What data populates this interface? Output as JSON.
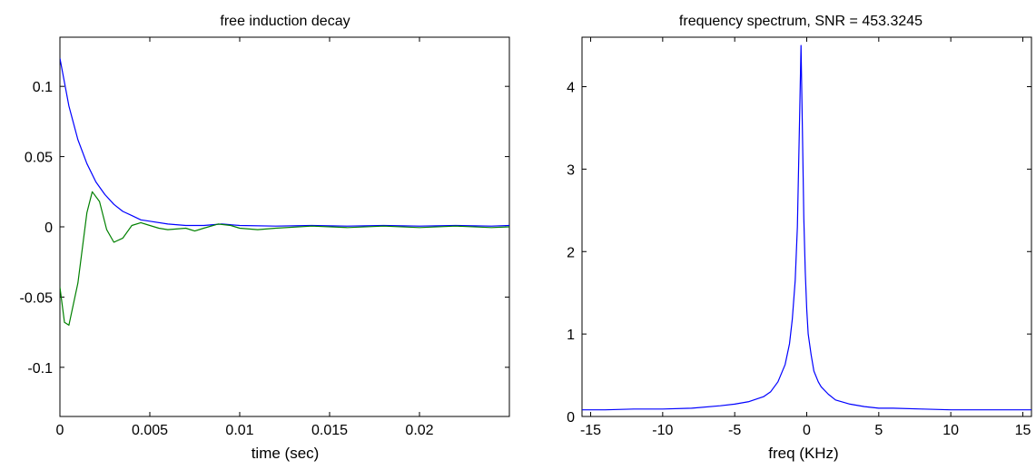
{
  "chart_data": [
    {
      "type": "line",
      "title": "free induction decay",
      "xlabel": "time (sec)",
      "ylabel": "",
      "xlim": [
        0,
        0.025
      ],
      "ylim": [
        -0.135,
        0.135
      ],
      "xticks": [
        0,
        0.005,
        0.01,
        0.015,
        0.02
      ],
      "xtick_labels": [
        "0",
        "0.005",
        "0.01",
        "0.015",
        "0.02"
      ],
      "yticks": [
        0.1,
        0.05,
        0,
        -0.05,
        -0.1
      ],
      "ytick_labels": [
        "0.1",
        "0.05",
        "0",
        "-0.05",
        "-0.1"
      ],
      "grid": false,
      "series": [
        {
          "color": "#0000ff",
          "x": [
            0,
            0.0005,
            0.001,
            0.0015,
            0.002,
            0.0025,
            0.003,
            0.0035,
            0.004,
            0.0045,
            0.005,
            0.006,
            0.007,
            0.008,
            0.009,
            0.01,
            0.012,
            0.014,
            0.016,
            0.018,
            0.02,
            0.022,
            0.024,
            0.025
          ],
          "y": [
            0.12,
            0.086,
            0.062,
            0.045,
            0.032,
            0.023,
            0.016,
            0.011,
            0.008,
            0.005,
            0.004,
            0.002,
            0.001,
            0.001,
            0.002,
            0.001,
            0.0005,
            0.001,
            0.0005,
            0.001,
            0.0005,
            0.001,
            0.0005,
            0.001
          ]
        },
        {
          "color": "#008000",
          "x": [
            0,
            0.00025,
            0.0005,
            0.001,
            0.0015,
            0.0018,
            0.0022,
            0.0026,
            0.003,
            0.0035,
            0.004,
            0.0045,
            0.005,
            0.0055,
            0.006,
            0.007,
            0.0075,
            0.008,
            0.0088,
            0.0095,
            0.01,
            0.011,
            0.012,
            0.014,
            0.016,
            0.018,
            0.02,
            0.022,
            0.024,
            0.025
          ],
          "y": [
            -0.043,
            -0.068,
            -0.07,
            -0.04,
            0.01,
            0.025,
            0.018,
            -0.002,
            -0.011,
            -0.008,
            0.001,
            0.003,
            0.001,
            -0.001,
            -0.002,
            -0.001,
            -0.003,
            -0.001,
            0.002,
            0.001,
            -0.001,
            -0.002,
            -0.001,
            0.0005,
            -0.0005,
            0.0005,
            -0.0005,
            0.0005,
            -0.0005,
            0
          ]
        }
      ]
    },
    {
      "type": "line",
      "title": "frequency spectrum, SNR = 453.3245",
      "xlabel": "freq (KHz)",
      "ylabel": "",
      "xlim": [
        -15.6,
        15.6
      ],
      "ylim": [
        0,
        4.6
      ],
      "xticks": [
        -15,
        -10,
        -5,
        0,
        5,
        10,
        15
      ],
      "xtick_labels": [
        "-15",
        "-10",
        "-5",
        "0",
        "5",
        "10",
        "15"
      ],
      "yticks": [
        0,
        1,
        2,
        3,
        4
      ],
      "ytick_labels": [
        "0",
        "1",
        "2",
        "3",
        "4"
      ],
      "grid": false,
      "series": [
        {
          "color": "#0000ff",
          "x": [
            -15.6,
            -14,
            -12,
            -10,
            -8,
            -6,
            -5,
            -4,
            -3,
            -2.5,
            -2,
            -1.5,
            -1.2,
            -1,
            -0.8,
            -0.65,
            -0.5,
            -0.4,
            -0.3,
            -0.2,
            -0.1,
            0,
            0.1,
            0.3,
            0.5,
            0.8,
            1,
            1.5,
            2,
            3,
            4,
            5,
            6,
            8,
            10,
            12,
            14,
            15.6
          ],
          "y": [
            0.08,
            0.08,
            0.09,
            0.09,
            0.1,
            0.13,
            0.15,
            0.18,
            0.24,
            0.3,
            0.42,
            0.63,
            0.88,
            1.18,
            1.65,
            2.3,
            3.6,
            4.5,
            3.5,
            2.4,
            1.75,
            1.3,
            1.0,
            0.75,
            0.55,
            0.42,
            0.36,
            0.27,
            0.2,
            0.15,
            0.12,
            0.1,
            0.1,
            0.09,
            0.08,
            0.08,
            0.08,
            0.08
          ]
        }
      ]
    }
  ]
}
